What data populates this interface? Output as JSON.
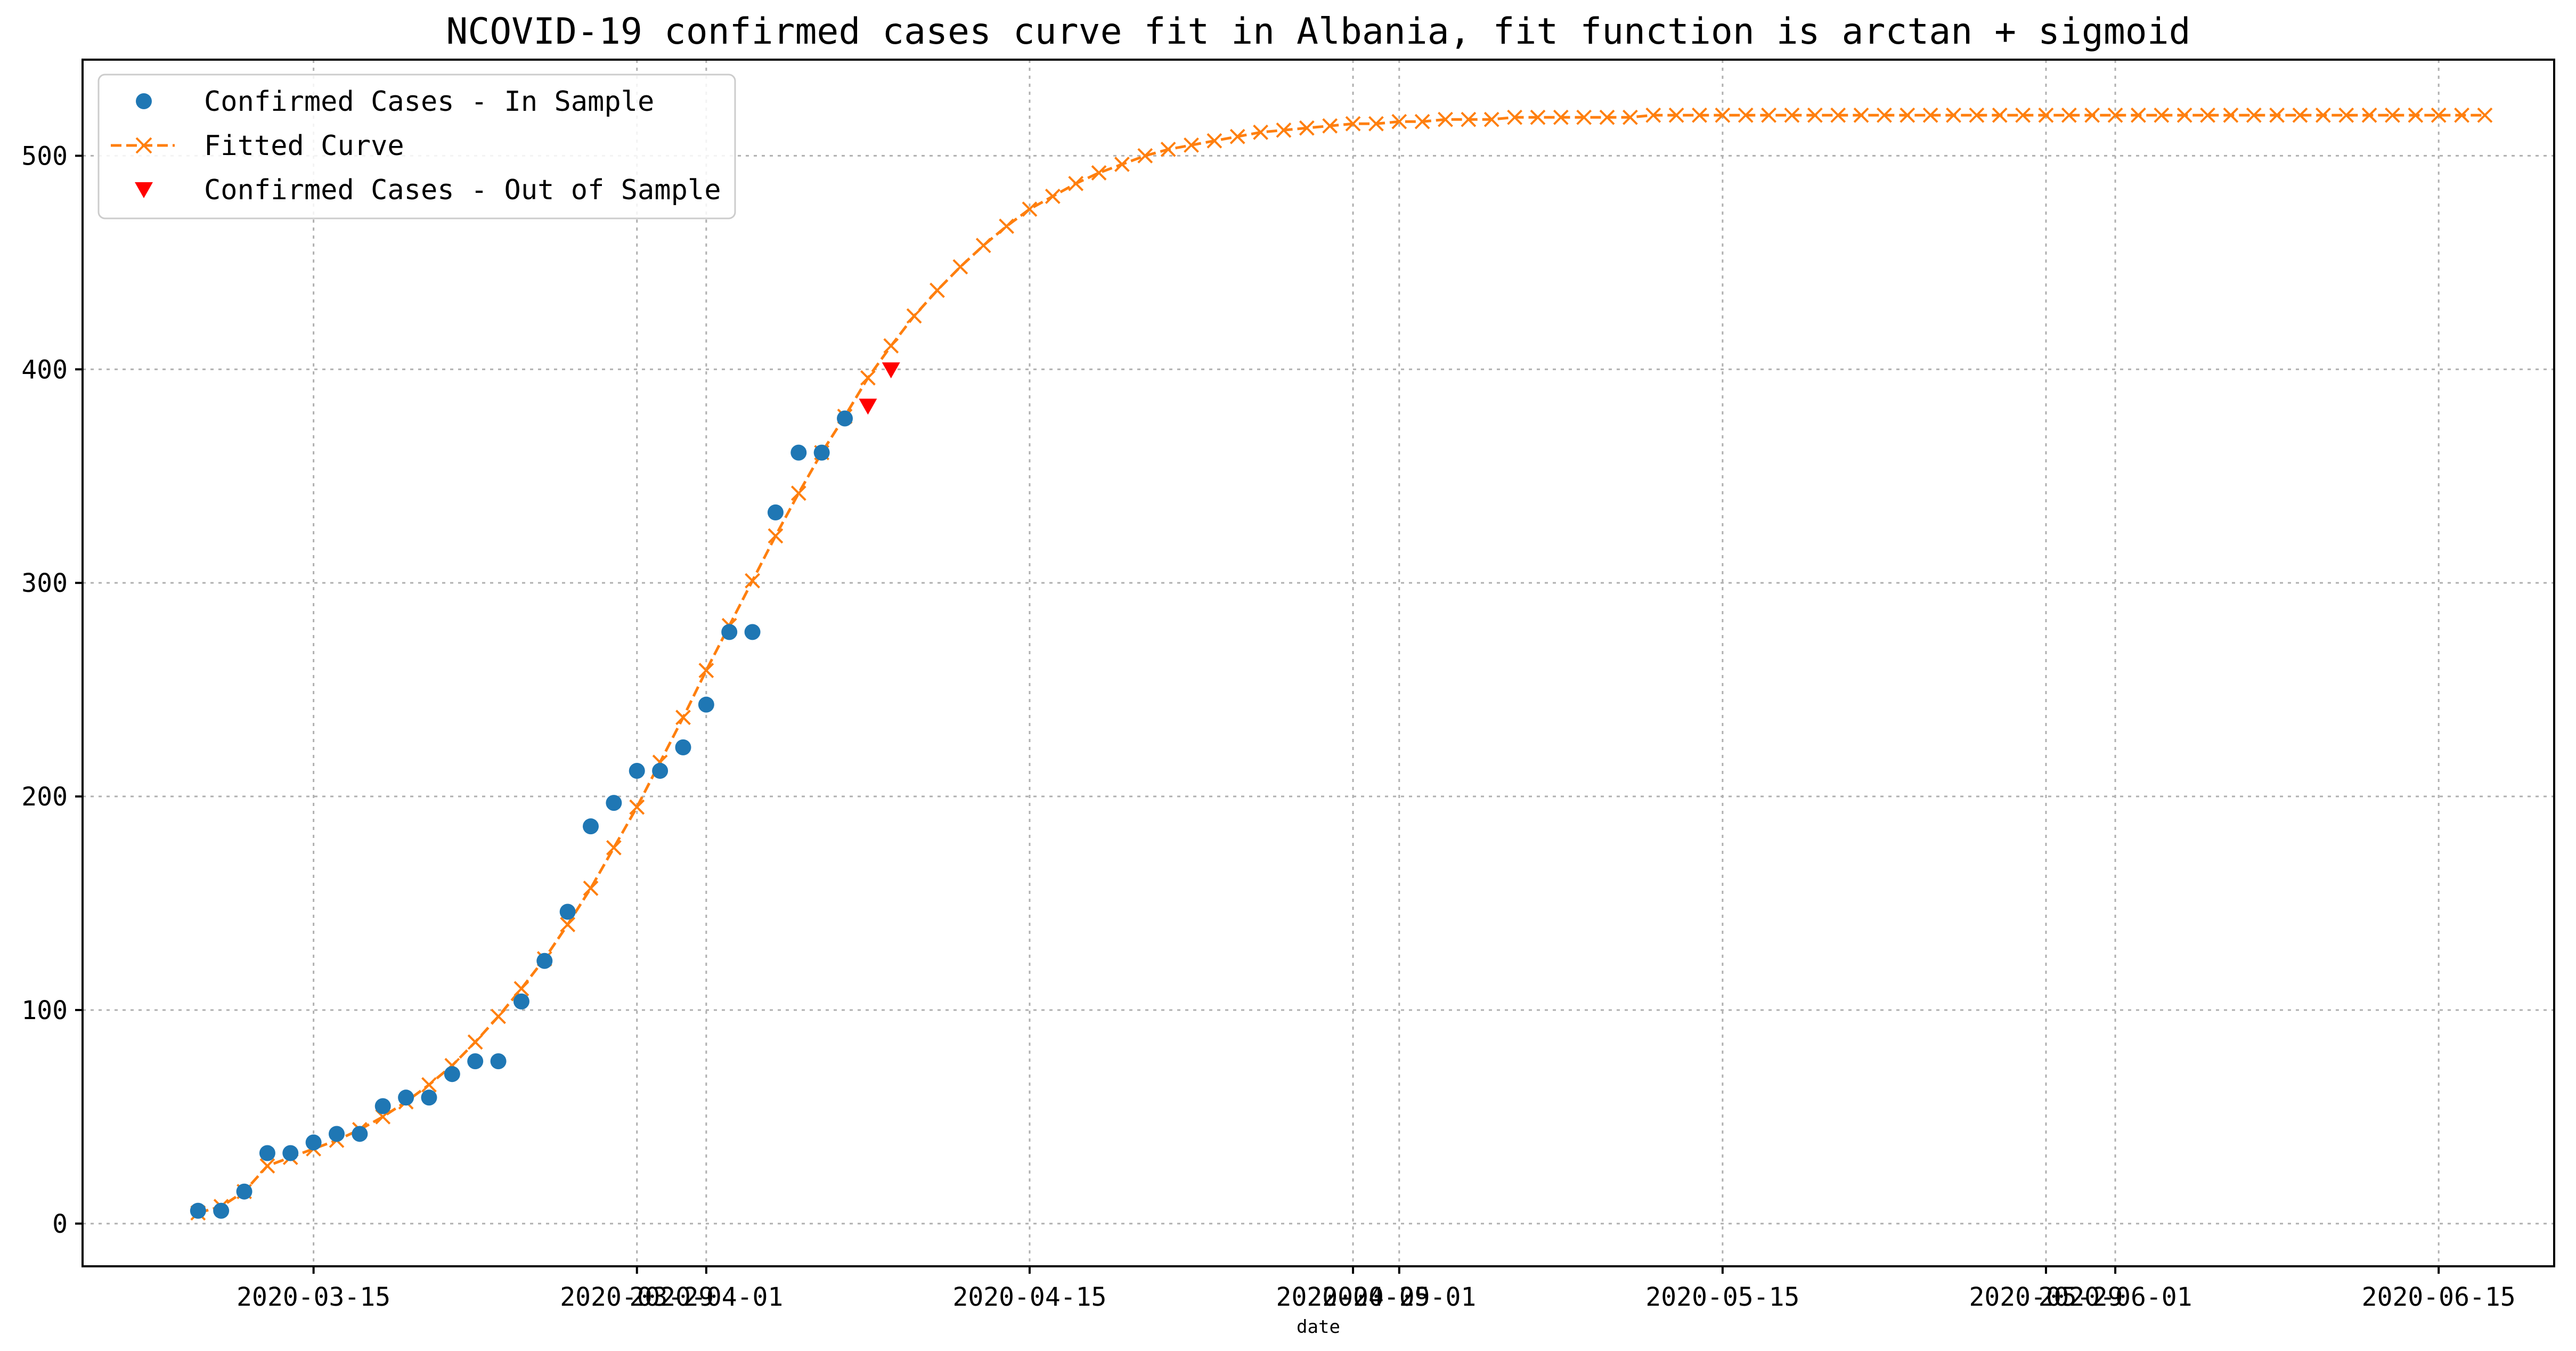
{
  "chart_data": {
    "type": "line",
    "title": "NCOVID-19 confirmed cases curve fit in Albania, fit function is arctan + sigmoid",
    "xlabel": "date",
    "ylabel": "",
    "ylim": [
      -20,
      545
    ],
    "x_range": [
      "2020-03-05",
      "2020-06-20"
    ],
    "grid": true,
    "legend_position": "top-left",
    "y_ticks": [
      0,
      100,
      200,
      300,
      400,
      500
    ],
    "x_ticks": [
      {
        "date": "2020-03-15",
        "label": "2020-03-15"
      },
      {
        "date": "2020-03-29",
        "label": "2020-03-29"
      },
      {
        "date": "2020-04-01",
        "label": "2020-04-01"
      },
      {
        "date": "2020-04-15",
        "label": "2020-04-15"
      },
      {
        "date": "2020-04-29",
        "label": "2020-04-29"
      },
      {
        "date": "2020-05-01",
        "label": "2020-05-01"
      },
      {
        "date": "2020-05-15",
        "label": "2020-05-15"
      },
      {
        "date": "2020-05-29",
        "label": "2020-05-29"
      },
      {
        "date": "2020-06-01",
        "label": "2020-06-01"
      },
      {
        "date": "2020-06-15",
        "label": "2020-06-15"
      }
    ],
    "series": [
      {
        "name": "Confirmed Cases - In Sample",
        "marker": "circle",
        "color": "#1f77b4",
        "start_date": "2020-03-10",
        "values": [
          6,
          6,
          15,
          33,
          33,
          38,
          42,
          42,
          55,
          59,
          59,
          70,
          76,
          76,
          104,
          123,
          146,
          186,
          197,
          212,
          212,
          223,
          243,
          277,
          277,
          333,
          361,
          361,
          377
        ]
      },
      {
        "name": "Fitted Curve",
        "marker": "x",
        "line": "dashed",
        "color": "#ff7f0e",
        "start_date": "2020-03-10",
        "values": [
          5,
          8,
          15,
          27,
          31,
          35,
          39,
          44,
          50,
          57,
          65,
          74,
          85,
          97,
          110,
          124,
          140,
          157,
          176,
          195,
          216,
          237,
          259,
          280,
          301,
          322,
          342,
          361,
          378,
          396,
          411,
          425,
          437,
          448,
          458,
          467,
          475,
          481,
          487,
          492,
          496,
          500,
          503,
          505,
          507,
          509,
          511,
          512,
          513,
          514,
          515,
          515,
          516,
          516,
          517,
          517,
          517,
          518,
          518,
          518,
          518,
          518,
          518,
          519,
          519,
          519,
          519,
          519,
          519,
          519,
          519,
          519,
          519,
          519,
          519,
          519,
          519,
          519,
          519,
          519,
          519,
          519,
          519,
          519,
          519,
          519,
          519,
          519,
          519,
          519,
          519,
          519,
          519,
          519,
          519,
          519,
          519,
          519,
          519,
          519
        ]
      },
      {
        "name": "Confirmed Cases - Out of Sample",
        "marker": "triangle-down",
        "color": "#ff0000",
        "start_date": "2020-04-08",
        "values": [
          383,
          400
        ]
      }
    ]
  }
}
